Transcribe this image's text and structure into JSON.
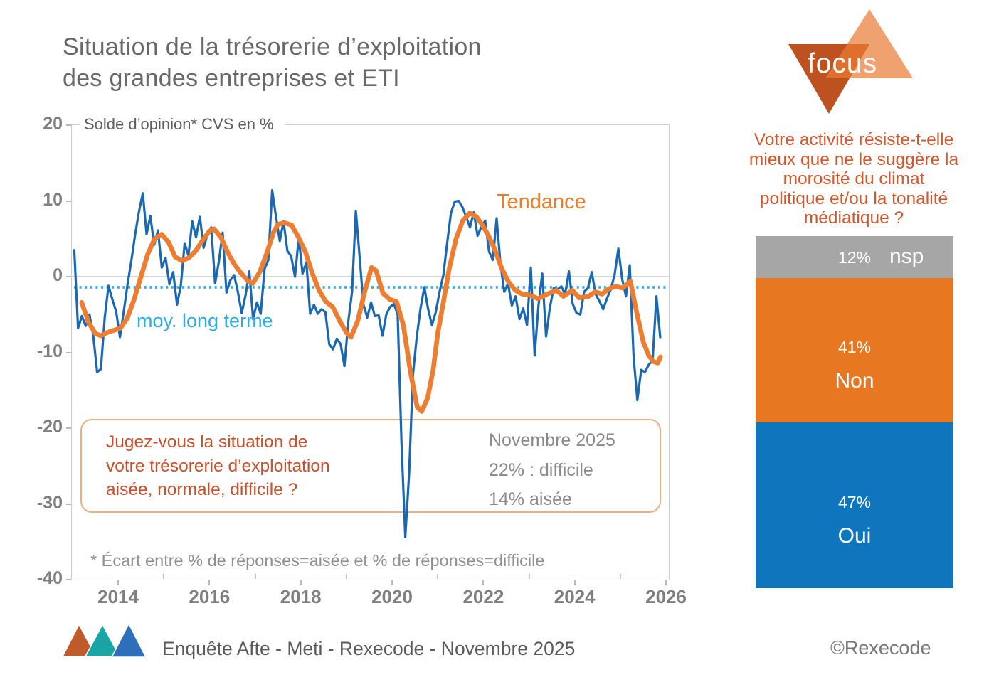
{
  "page": {
    "title_line1": "Situation de la trésorerie d’exploitation",
    "title_line2": "des grandes entreprises et ETI"
  },
  "chart_data": [
    {
      "type": "line",
      "subtitle": "Solde d’opinion* CVS en %",
      "ylim": [
        -40,
        20
      ],
      "yticks": [
        20,
        10,
        0,
        -10,
        -20,
        -30,
        -40
      ],
      "xticks": [
        2014,
        2016,
        2018,
        2020,
        2022,
        2024,
        2026
      ],
      "x_range": [
        2013.0,
        2026.1
      ],
      "grid": "frame-only",
      "long_term_mean": -1.4,
      "long_term_color": "#2BACE4",
      "zero_line_color": "#c6c6c6",
      "labels": {
        "trend": "Tendance",
        "long_term": "moy. long terme"
      },
      "annotation_box": {
        "question_line1": "Jugez-vous la situation de",
        "question_line2": "votre trésorerie d’exploitation",
        "question_line3": "aisée, normale, difficile ?",
        "date": "Novembre 2025",
        "stat_difficile": "22% : difficile",
        "stat_aisee": "14% aisée"
      },
      "footnote": "* Écart entre % de réponses=aisée et % de réponses=difficile",
      "series": [
        {
          "name": "solde mensuel CVS",
          "color": "#1A68B2",
          "start_year": 2013.04,
          "step_years": 0.083333,
          "values": [
            3.5,
            -6.8,
            -5.2,
            -6.5,
            -5.0,
            -7.8,
            -12.6,
            -12.2,
            -5.4,
            -1.2,
            -3.0,
            -4.6,
            -8.0,
            -4.6,
            -1.0,
            2.1,
            5.6,
            8.6,
            11.0,
            5.6,
            8.0,
            4.2,
            6.1,
            1.2,
            2.5,
            -1.0,
            0.6,
            -3.7,
            -1.2,
            4.4,
            2.8,
            7.3,
            5.2,
            7.9,
            3.8,
            5.6,
            6.5,
            -0.9,
            2.0,
            5.8,
            -2.1,
            -0.5,
            0.2,
            -2.0,
            -4.8,
            -2.5,
            0.7,
            -5.6,
            -3.4,
            -4.9,
            1.0,
            2.2,
            11.4,
            8.0,
            4.7,
            7.3,
            3.4,
            2.7,
            0.0,
            5.2,
            0.4,
            1.9,
            -4.9,
            -3.7,
            -4.9,
            -4.3,
            -4.7,
            -8.9,
            -9.6,
            -8.2,
            -8.9,
            -11.8,
            -6.0,
            -2.0,
            8.7,
            2.5,
            -3.7,
            -5.4,
            -3.4,
            -5.2,
            -5.1,
            -7.8,
            -5.0,
            -4.0,
            -3.6,
            -5.0,
            -22.0,
            -34.4,
            -26.0,
            -13.0,
            -8.0,
            -4.2,
            -1.4,
            -4.3,
            -6.4,
            -4.7,
            -2.0,
            0.2,
            4.4,
            8.4,
            9.9,
            10.0,
            9.2,
            7.9,
            6.5,
            8.5,
            5.4,
            6.6,
            7.4,
            3.3,
            2.2,
            7.7,
            1.8,
            -2.0,
            -0.9,
            -3.8,
            -2.6,
            -5.6,
            -4.2,
            -6.4,
            1.2,
            -10.4,
            -3.8,
            0.4,
            -7.9,
            -4.1,
            -1.5,
            -1.7,
            -1.3,
            -2.3,
            0.7,
            -3.6,
            -4.8,
            -5.0,
            -2.0,
            -1.5,
            0.6,
            -2.3,
            -3.2,
            -4.3,
            -2.9,
            -1.7,
            0.2,
            3.7,
            -0.3,
            -2.6,
            1.5,
            -10.6,
            -16.3,
            -12.3,
            -12.6,
            -11.6,
            -11.1,
            -2.6,
            -8.0
          ]
        },
        {
          "name": "Tendance",
          "color": "#ED7D31",
          "points": [
            [
              2013.2,
              -3.4
            ],
            [
              2013.35,
              -6.0
            ],
            [
              2013.5,
              -7.5
            ],
            [
              2013.62,
              -7.8
            ],
            [
              2013.75,
              -7.4
            ],
            [
              2013.9,
              -7.1
            ],
            [
              2014.05,
              -6.8
            ],
            [
              2014.2,
              -5.5
            ],
            [
              2014.35,
              -3.0
            ],
            [
              2014.5,
              0.0
            ],
            [
              2014.65,
              3.0
            ],
            [
              2014.8,
              5.0
            ],
            [
              2014.95,
              5.6
            ],
            [
              2015.1,
              4.6
            ],
            [
              2015.25,
              2.6
            ],
            [
              2015.4,
              2.1
            ],
            [
              2015.55,
              2.5
            ],
            [
              2015.7,
              3.4
            ],
            [
              2015.85,
              4.8
            ],
            [
              2016.0,
              6.0
            ],
            [
              2016.1,
              6.3
            ],
            [
              2016.25,
              5.2
            ],
            [
              2016.4,
              3.2
            ],
            [
              2016.55,
              1.6
            ],
            [
              2016.7,
              0.4
            ],
            [
              2016.85,
              -0.6
            ],
            [
              2016.95,
              -0.9
            ],
            [
              2017.1,
              0.6
            ],
            [
              2017.25,
              3.0
            ],
            [
              2017.4,
              5.8
            ],
            [
              2017.5,
              6.9
            ],
            [
              2017.65,
              7.1
            ],
            [
              2017.8,
              6.8
            ],
            [
              2017.95,
              5.2
            ],
            [
              2018.1,
              3.3
            ],
            [
              2018.25,
              0.5
            ],
            [
              2018.4,
              -1.8
            ],
            [
              2018.55,
              -3.3
            ],
            [
              2018.7,
              -4.0
            ],
            [
              2018.85,
              -5.8
            ],
            [
              2019.0,
              -7.4
            ],
            [
              2019.1,
              -8.0
            ],
            [
              2019.25,
              -5.8
            ],
            [
              2019.4,
              -2.0
            ],
            [
              2019.55,
              1.2
            ],
            [
              2019.65,
              0.8
            ],
            [
              2019.8,
              -2.2
            ],
            [
              2019.95,
              -3.0
            ],
            [
              2020.1,
              -3.3
            ],
            [
              2020.25,
              -6.5
            ],
            [
              2020.4,
              -12.5
            ],
            [
              2020.55,
              -17.2
            ],
            [
              2020.65,
              -17.8
            ],
            [
              2020.78,
              -16.0
            ],
            [
              2020.9,
              -12.3
            ],
            [
              2021.0,
              -7.5
            ],
            [
              2021.12,
              -3.5
            ],
            [
              2021.25,
              1.0
            ],
            [
              2021.4,
              5.0
            ],
            [
              2021.55,
              7.4
            ],
            [
              2021.7,
              8.4
            ],
            [
              2021.85,
              7.9
            ],
            [
              2022.0,
              6.6
            ],
            [
              2022.12,
              5.3
            ],
            [
              2022.25,
              3.6
            ],
            [
              2022.4,
              1.1
            ],
            [
              2022.55,
              -0.7
            ],
            [
              2022.7,
              -1.8
            ],
            [
              2022.85,
              -2.3
            ],
            [
              2023.0,
              -2.4
            ],
            [
              2023.2,
              -2.9
            ],
            [
              2023.4,
              -2.3
            ],
            [
              2023.6,
              -1.8
            ],
            [
              2023.75,
              -2.6
            ],
            [
              2023.95,
              -1.8
            ],
            [
              2024.1,
              -2.8
            ],
            [
              2024.3,
              -2.6
            ],
            [
              2024.45,
              -2.0
            ],
            [
              2024.6,
              -2.3
            ],
            [
              2024.75,
              -1.6
            ],
            [
              2024.9,
              -1.3
            ],
            [
              2025.05,
              -1.5
            ],
            [
              2025.15,
              -1.0
            ],
            [
              2025.22,
              -0.6
            ],
            [
              2025.35,
              -4.5
            ],
            [
              2025.5,
              -8.6
            ],
            [
              2025.62,
              -10.4
            ],
            [
              2025.72,
              -11.2
            ],
            [
              2025.82,
              -11.4
            ],
            [
              2025.88,
              -10.6
            ]
          ]
        }
      ]
    },
    {
      "type": "stacked-bar",
      "question_lines": [
        "Votre activité résiste-t-elle",
        "mieux que ne le suggère la",
        "morosité du climat",
        "politique et/ou la tonalité",
        "médiatique ?"
      ],
      "segments": [
        {
          "label": "nsp",
          "pct_label": "12%",
          "value": 12,
          "color": "#A6A6A6"
        },
        {
          "label": "Non",
          "pct_label": "41%",
          "value": 41,
          "color": "#E87722"
        },
        {
          "label": "Oui",
          "pct_label": "47%",
          "value": 47,
          "color": "#0F76BE"
        }
      ]
    }
  ],
  "logo": {
    "text": "focus",
    "dark_color": "#BD5120",
    "light_color": "#F0A170",
    "overlap_color": "#DF6F2D"
  },
  "footer": {
    "source": "Enquête Afte - Meti - Rexecode  - Novembre 2025",
    "copyright": "©Rexecode",
    "triangle_colors": [
      "#BF5B2B",
      "#19A5A5",
      "#2E6FBA"
    ]
  }
}
